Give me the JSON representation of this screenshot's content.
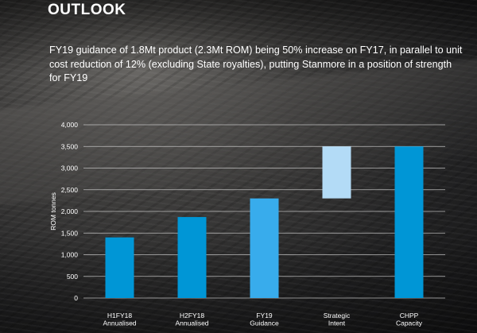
{
  "page": {
    "title": "OUTLOOK",
    "subtitle": "FY19 guidance of 1.8Mt product (2.3Mt ROM) being 50% increase on FY17, in parallel to unit cost reduction of 12% (excluding State royalties), putting Stanmore in a position of strength for FY19"
  },
  "chart_data": {
    "type": "bar",
    "ylabel": "ROM tonnes",
    "ylim": [
      0,
      4000
    ],
    "yticks": [
      0,
      500,
      1000,
      1500,
      2000,
      2500,
      3000,
      3500,
      4000
    ],
    "ytick_labels": [
      "0",
      "500",
      "1,000",
      "1,500",
      "2,000",
      "2,500",
      "3,000",
      "3,500",
      "4,000"
    ],
    "grid": true,
    "categories": [
      [
        "H1FY18",
        "Annualised"
      ],
      [
        "H2FY18",
        "Annualised"
      ],
      [
        "FY19",
        "Guidance"
      ],
      [
        "Strategic",
        "Intent"
      ],
      [
        "CHPP",
        "Capacity"
      ]
    ],
    "bars": [
      {
        "base": 0,
        "value": 1400,
        "color": "#0096d6"
      },
      {
        "base": 0,
        "value": 1870,
        "color": "#0096d6"
      },
      {
        "base": 0,
        "value": 2300,
        "color": "#38acec"
      },
      {
        "base": 2300,
        "value": 3500,
        "color": "#b3dbf6"
      },
      {
        "base": 0,
        "value": 3500,
        "color": "#0096d6"
      }
    ]
  }
}
